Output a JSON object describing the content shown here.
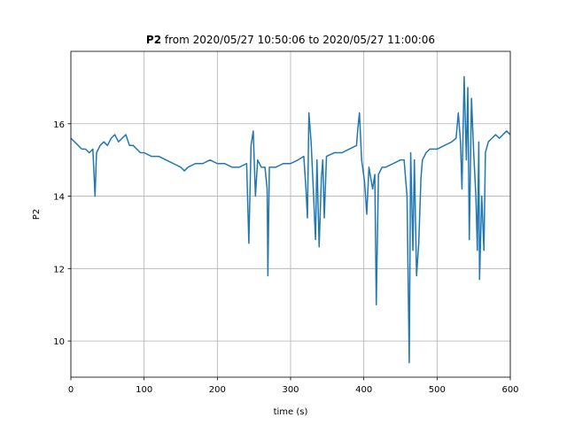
{
  "chart_data": {
    "type": "line",
    "title_parts": [
      "P2",
      "from 2020/05/27 10:50:06 to 2020/05/27 11:00:06"
    ],
    "xlabel": "time (s)",
    "ylabel": "P2",
    "xlim": [
      0,
      600
    ],
    "ylim": [
      9,
      18
    ],
    "xticks": [
      0,
      100,
      200,
      300,
      400,
      500,
      600
    ],
    "yticks": [
      10,
      12,
      14,
      16
    ],
    "grid": true,
    "color": "#1f77b4",
    "x": [
      0,
      5,
      10,
      15,
      20,
      25,
      30,
      33,
      35,
      40,
      45,
      50,
      55,
      60,
      65,
      70,
      75,
      80,
      85,
      90,
      95,
      100,
      110,
      120,
      130,
      140,
      150,
      155,
      160,
      170,
      180,
      190,
      200,
      210,
      220,
      230,
      240,
      243,
      246,
      249,
      252,
      255,
      260,
      265,
      268,
      269,
      271,
      280,
      290,
      300,
      310,
      318,
      321,
      323,
      325,
      328,
      331,
      334,
      336,
      339,
      342,
      344,
      346,
      349,
      360,
      370,
      380,
      390,
      392,
      394,
      397,
      401,
      404,
      407,
      412,
      415,
      417,
      420,
      425,
      430,
      440,
      450,
      455,
      459,
      462,
      464,
      467,
      469,
      472,
      475,
      478,
      480,
      485,
      490,
      500,
      510,
      520,
      526,
      529,
      532,
      534,
      537,
      540,
      542,
      544,
      547,
      550,
      553,
      555,
      557,
      558,
      561,
      564,
      566,
      570,
      575,
      580,
      585,
      590,
      595,
      600
    ],
    "values": [
      15.6,
      15.5,
      15.4,
      15.3,
      15.3,
      15.2,
      15.3,
      14.0,
      15.2,
      15.4,
      15.5,
      15.4,
      15.6,
      15.7,
      15.5,
      15.6,
      15.7,
      15.4,
      15.4,
      15.3,
      15.2,
      15.2,
      15.1,
      15.1,
      15.0,
      14.9,
      14.8,
      14.7,
      14.8,
      14.9,
      14.9,
      15.0,
      14.9,
      14.9,
      14.8,
      14.8,
      14.9,
      12.7,
      15.4,
      15.8,
      14.0,
      15.0,
      14.8,
      14.8,
      14.2,
      11.8,
      14.8,
      14.8,
      14.9,
      14.9,
      15.0,
      15.1,
      14.2,
      13.4,
      16.3,
      15.5,
      14.2,
      12.8,
      15.0,
      12.6,
      14.5,
      15.0,
      13.4,
      15.1,
      15.2,
      15.2,
      15.3,
      15.4,
      15.9,
      16.3,
      15.0,
      14.4,
      13.5,
      14.8,
      14.2,
      14.6,
      11.0,
      14.6,
      14.8,
      14.8,
      14.9,
      15.0,
      15.0,
      14.0,
      9.4,
      15.2,
      12.5,
      15.0,
      11.8,
      12.7,
      14.5,
      15.0,
      15.2,
      15.3,
      15.3,
      15.4,
      15.5,
      15.6,
      16.3,
      15.5,
      14.2,
      17.3,
      15.0,
      17.0,
      12.8,
      16.7,
      15.2,
      14.0,
      12.5,
      15.5,
      11.7,
      14.0,
      12.5,
      15.2,
      15.5,
      15.6,
      15.7,
      15.6,
      15.7,
      15.8,
      15.7
    ]
  }
}
